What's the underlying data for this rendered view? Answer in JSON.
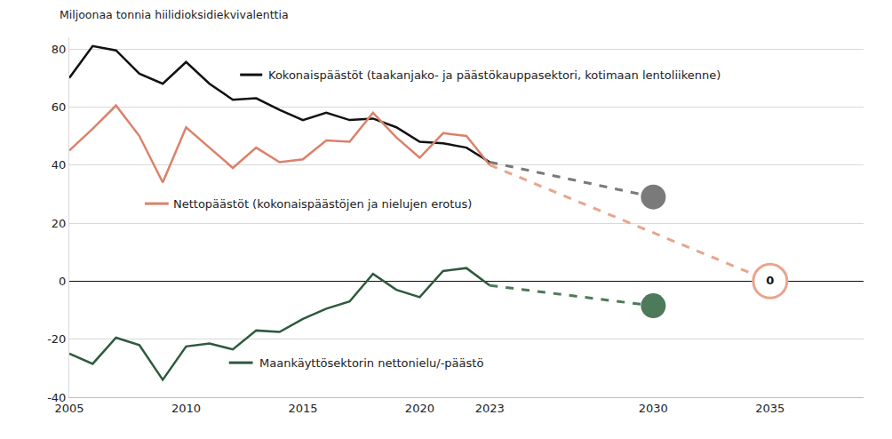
{
  "chart_data": {
    "type": "line",
    "y_label": "Miljoonaa tonnia hiilidioksidiekvivalenttia",
    "x": [
      2005,
      2006,
      2007,
      2008,
      2009,
      2010,
      2011,
      2012,
      2013,
      2014,
      2015,
      2016,
      2017,
      2018,
      2019,
      2020,
      2021,
      2022,
      2023
    ],
    "xlim": [
      2005,
      2039
    ],
    "xticks": [
      2005,
      2010,
      2015,
      2020,
      2023,
      2030,
      2035
    ],
    "ylim": [
      -40,
      84
    ],
    "yticks": [
      -40,
      -20,
      0,
      20,
      40,
      60,
      80
    ],
    "grid": true,
    "series": [
      {
        "name": "Kokonaispäästöt (taakanjako- ja päästökauppasektori, kotimaan lentoliikenne)",
        "color": "#111111",
        "values": [
          70,
          81,
          79.5,
          71.5,
          68,
          75.5,
          68,
          62.5,
          63,
          59,
          55.5,
          58,
          55.5,
          56,
          53,
          48,
          47.5,
          46,
          41
        ],
        "target": {
          "x": 2030,
          "value": 29,
          "color": "#7a7a7a",
          "marker": "circle"
        }
      },
      {
        "name": "Nettopäästöt (kokonaispäästöjen ja nielujen erotus)",
        "color": "#d9826a",
        "values": [
          45,
          52.5,
          60.5,
          50,
          34,
          53,
          46,
          39,
          46,
          41,
          42,
          48.5,
          48,
          58,
          49.5,
          42.5,
          51,
          50,
          40
        ],
        "target": {
          "x": 2035,
          "value": 0,
          "label": "0",
          "color": "#e8a58c",
          "marker": "circle-open"
        }
      },
      {
        "name": "Maankäyttösektorin nettonielu/-päästö",
        "color": "#2d5a3d",
        "values": [
          -25,
          -28.5,
          -19.5,
          -22,
          -34,
          -22.5,
          -21.5,
          -23.5,
          -17,
          -17.5,
          -13,
          -9.5,
          -7,
          2.5,
          -3,
          -5.5,
          3.5,
          4.5,
          -1.5
        ],
        "target": {
          "x": 2030,
          "value": -8.5,
          "color": "#4d7a5a",
          "marker": "circle"
        }
      }
    ]
  }
}
